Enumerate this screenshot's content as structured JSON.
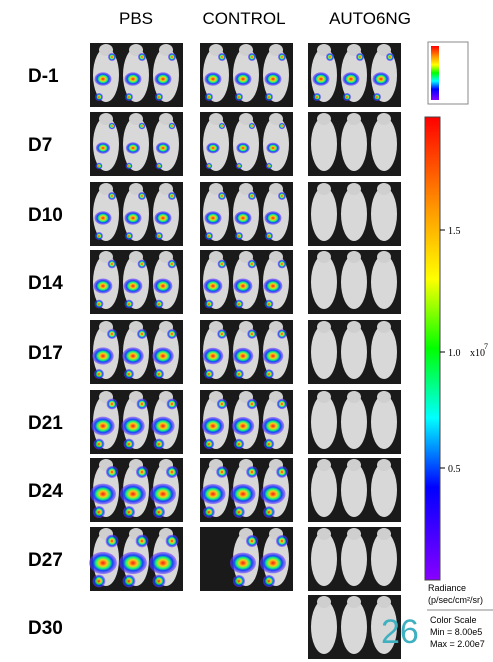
{
  "columns": [
    "PBS",
    "CONTROL",
    "AUTO6NG"
  ],
  "rows": [
    "D-1",
    "D7",
    "D10",
    "D14",
    "D17",
    "D21",
    "D24",
    "D27",
    "D30"
  ],
  "color_bar": {
    "ticks": [
      "1.5",
      "1.0",
      "0.5"
    ],
    "multiplier": "x10",
    "exponent": "7",
    "unit_title": "Radiance",
    "unit": "(p/sec/cm²/sr)"
  },
  "color_scale": {
    "title": "Color Scale",
    "min": "Min = 8.00e5",
    "max": "Max = 2.00e7"
  },
  "page_number": "26"
}
